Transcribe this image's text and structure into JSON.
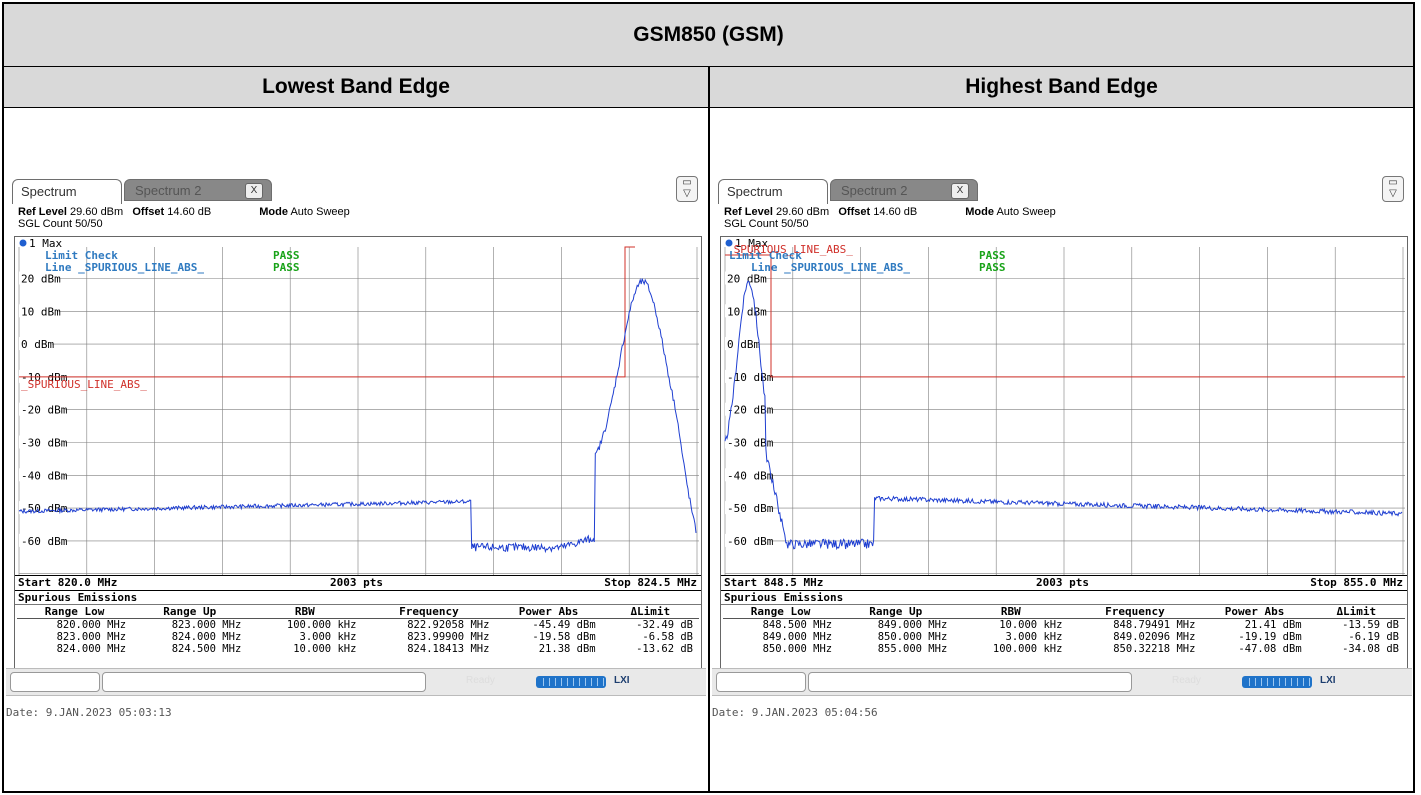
{
  "page": {
    "title": "GSM850 (GSM)",
    "left_heading": "Lowest Band Edge",
    "right_heading": "Highest Band Edge"
  },
  "panels": [
    {
      "tab_active": "Spectrum",
      "tab_inactive": "Spectrum 2",
      "tab_close": "X",
      "ref_level_label": "Ref Level",
      "ref_level_value": "29.60 dBm",
      "offset_label": "Offset",
      "offset_value": "14.60 dB",
      "mode_label": "Mode",
      "mode_value": "Auto Sweep",
      "sgl_count": "SGL Count 50/50",
      "trace_label": "1 Max",
      "limit_check_label": "Limit Check",
      "limit_check_result": "PASS",
      "line_label": "Line _SPURIOUS_LINE_ABS_",
      "line_result": "PASS",
      "limit_line_name": "_SPURIOUS_LINE_ABS_",
      "y_labels": [
        "20 dBm",
        "10 dBm",
        "0 dBm",
        "-10 dBm",
        "-20 dBm",
        "-30 dBm",
        "-40 dBm",
        "-50 dBm",
        "-60 dBm"
      ],
      "start": "Start 820.0 MHz",
      "pts": "2003 pts",
      "stop": "Stop 824.5 MHz",
      "table_title": "Spurious Emissions",
      "columns": [
        "Range Low",
        "Range Up",
        "RBW",
        "Frequency",
        "Power Abs",
        "ΔLimit"
      ],
      "rows": [
        [
          "820.000 MHz",
          "823.000 MHz",
          "100.000 kHz",
          "822.92058 MHz",
          "-45.49 dBm",
          "-32.49 dB"
        ],
        [
          "823.000 MHz",
          "824.000 MHz",
          "3.000 kHz",
          "823.99900 MHz",
          "-19.58 dBm",
          "-6.58 dB"
        ],
        [
          "824.000 MHz",
          "824.500 MHz",
          "10.000 kHz",
          "824.18413 MHz",
          "21.38 dBm",
          "-13.62 dB"
        ]
      ],
      "status_ready": "Ready",
      "status_lxi": "LXI",
      "date": "Date: 9.JAN.2023  05:03:13"
    },
    {
      "tab_active": "Spectrum",
      "tab_inactive": "Spectrum 2",
      "tab_close": "X",
      "ref_level_label": "Ref Level",
      "ref_level_value": "29.60 dBm",
      "offset_label": "Offset",
      "offset_value": "14.60 dB",
      "mode_label": "Mode",
      "mode_value": "Auto Sweep",
      "sgl_count": "SGL Count 50/50",
      "trace_label": "1 Max",
      "limit_check_label": "Limit Check",
      "limit_check_result": "PASS",
      "line_label": "Line _SPURIOUS_LINE_ABS_",
      "line_result": "PASS",
      "limit_line_name": "_SPURIOUS_LINE_ABS_",
      "y_labels": [
        "20 dBm",
        "10 dBm",
        "0 dBm",
        "-10 dBm",
        "-20 dBm",
        "-30 dBm",
        "-40 dBm",
        "-50 dBm",
        "-60 dBm"
      ],
      "start": "Start 848.5 MHz",
      "pts": "2003 pts",
      "stop": "Stop 855.0 MHz",
      "table_title": "Spurious Emissions",
      "columns": [
        "Range Low",
        "Range Up",
        "RBW",
        "Frequency",
        "Power Abs",
        "ΔLimit"
      ],
      "rows": [
        [
          "848.500 MHz",
          "849.000 MHz",
          "10.000 kHz",
          "848.79491 MHz",
          "21.41 dBm",
          "-13.59 dB"
        ],
        [
          "849.000 MHz",
          "850.000 MHz",
          "3.000 kHz",
          "849.02096 MHz",
          "-19.19 dBm",
          "-6.19 dB"
        ],
        [
          "850.000 MHz",
          "855.000 MHz",
          "100.000 kHz",
          "850.32218 MHz",
          "-47.08 dBm",
          "-34.08 dB"
        ]
      ],
      "status_ready": "Ready",
      "status_lxi": "LXI",
      "date": "Date: 9.JAN.2023  05:04:56"
    }
  ],
  "colors": {
    "trace": "#1f3fd1",
    "limit_line": "#d0302a",
    "pass": "#19a319",
    "label_blue": "#2f7ac0",
    "grid": "#7f7f7f"
  }
}
